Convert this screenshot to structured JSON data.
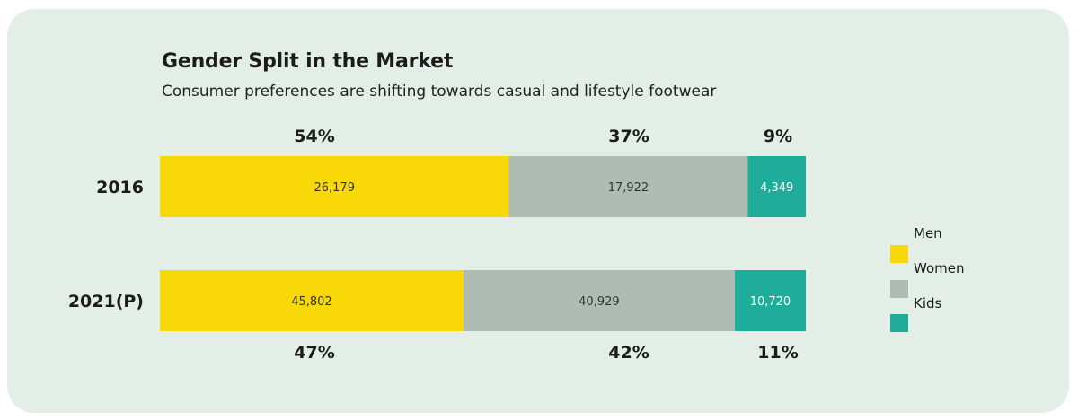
{
  "chart_data": {
    "type": "bar",
    "orientation": "horizontal",
    "stacked": true,
    "title": "Gender Split in the Market",
    "subtitle": "Consumer preferences are shifting towards casual and lifestyle footwear",
    "categories": [
      "2016",
      "2021(P)"
    ],
    "series": [
      {
        "name": "Men",
        "color": "#f8d808",
        "values": [
          26179,
          45802
        ],
        "value_labels": [
          "26,179",
          "45,802"
        ],
        "share_labels": [
          "54%",
          "47%"
        ]
      },
      {
        "name": "Women",
        "color": "#aebcb3",
        "values": [
          17922,
          40929
        ],
        "value_labels": [
          "17,922",
          "40,929"
        ],
        "share_labels": [
          "37%",
          "42%"
        ]
      },
      {
        "name": "Kids",
        "color": "#1fac9a",
        "values": [
          4349,
          10720
        ],
        "value_labels": [
          "4,349",
          "10,720"
        ],
        "share_labels": [
          "9%",
          "11%"
        ]
      }
    ],
    "legend_position": "right",
    "grid": false
  }
}
